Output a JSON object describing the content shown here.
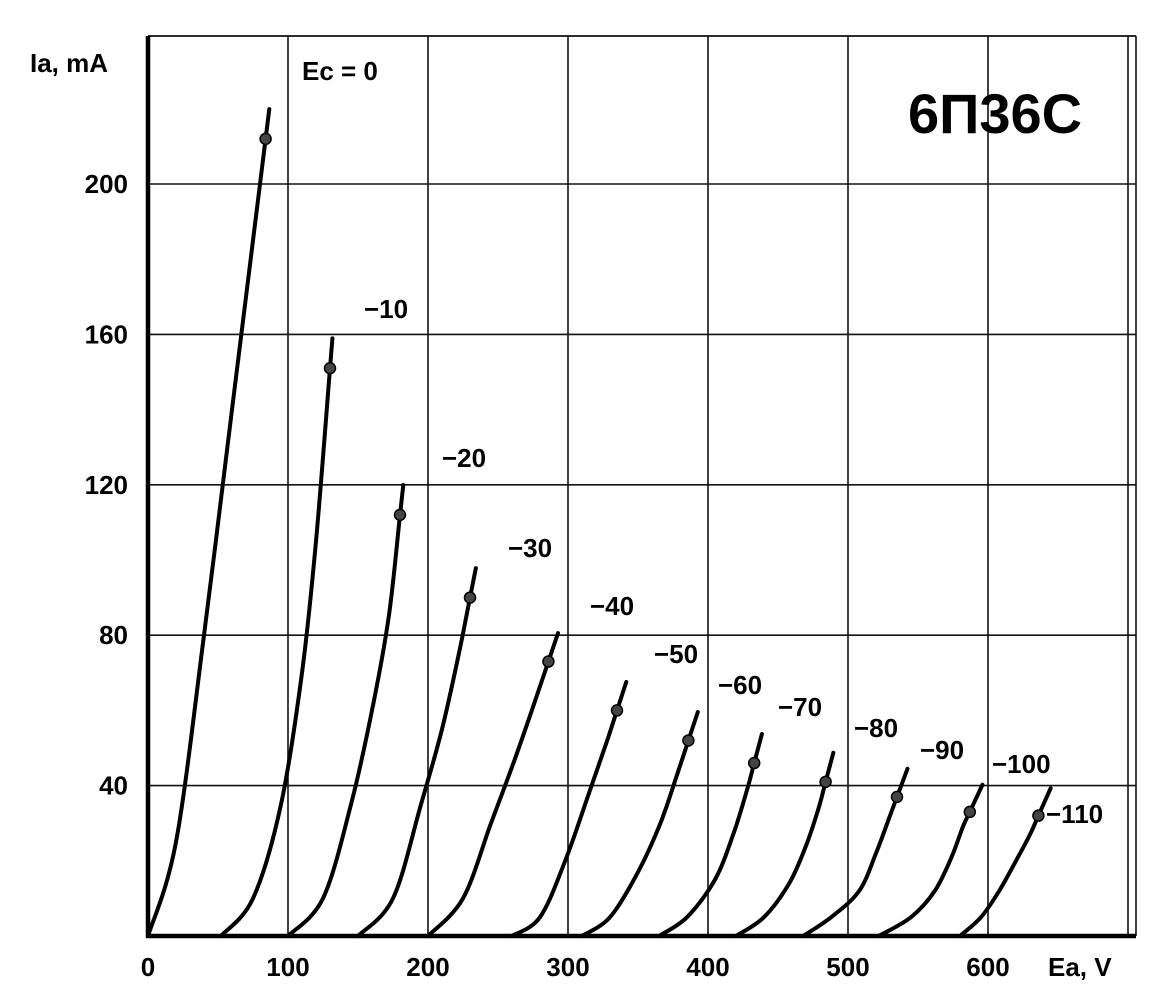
{
  "chart_data": {
    "type": "line",
    "title": "6П36С",
    "xlabel": "Ea, V",
    "ylabel": "Ia, mA",
    "xlim": [
      0,
      700
    ],
    "ylim": [
      0,
      240
    ],
    "x_ticks": [
      "0",
      "100",
      "200",
      "300",
      "400",
      "500",
      "600"
    ],
    "y_ticks": [
      "40",
      "80",
      "120",
      "160",
      "200"
    ],
    "grid": true,
    "series": [
      {
        "name": "Ec = 0",
        "x": [
          0,
          20,
          40,
          60,
          75,
          84
        ],
        "y": [
          0,
          25,
          80,
          140,
          185,
          212
        ],
        "marker": [
          84,
          212
        ]
      },
      {
        "name": "−10",
        "x": [
          52,
          75,
          95,
          110,
          120,
          130
        ],
        "y": [
          0,
          10,
          35,
          70,
          105,
          151
        ],
        "marker": [
          130,
          151
        ]
      },
      {
        "name": "−20",
        "x": [
          100,
          125,
          145,
          160,
          172,
          180
        ],
        "y": [
          0,
          10,
          35,
          60,
          85,
          112
        ],
        "marker": [
          180,
          112
        ]
      },
      {
        "name": "−30",
        "x": [
          150,
          175,
          195,
          210,
          222,
          230
        ],
        "y": [
          0,
          10,
          35,
          55,
          75,
          90
        ],
        "marker": [
          230,
          90
        ]
      },
      {
        "name": "−40",
        "x": [
          200,
          225,
          245,
          262,
          276,
          286
        ],
        "y": [
          0,
          10,
          30,
          47,
          62,
          73
        ],
        "marker": [
          286,
          73
        ]
      },
      {
        "name": "−50",
        "x": [
          260,
          280,
          298,
          315,
          328,
          335
        ],
        "y": [
          0,
          5,
          20,
          38,
          52,
          60
        ],
        "marker": [
          335,
          60
        ]
      },
      {
        "name": "−60",
        "x": [
          310,
          330,
          350,
          366,
          378,
          386
        ],
        "y": [
          0,
          5,
          17,
          30,
          43,
          52
        ],
        "marker": [
          386,
          52
        ]
      },
      {
        "name": "−70",
        "x": [
          365,
          385,
          405,
          418,
          428,
          433
        ],
        "y": [
          0,
          5,
          15,
          27,
          39,
          46
        ],
        "marker": [
          433,
          46
        ]
      },
      {
        "name": "−80",
        "x": [
          420,
          440,
          458,
          470,
          479,
          484
        ],
        "y": [
          0,
          5,
          14,
          24,
          34,
          41
        ],
        "marker": [
          484,
          41
        ]
      },
      {
        "name": "−90",
        "x": [
          468,
          488,
          508,
          520,
          530,
          535
        ],
        "y": [
          0,
          5,
          12,
          22,
          32,
          37
        ],
        "marker": [
          535,
          37
        ]
      },
      {
        "name": "−100",
        "x": [
          522,
          545,
          562,
          574,
          582,
          587
        ],
        "y": [
          0,
          5,
          12,
          21,
          29,
          33
        ],
        "marker": [
          587,
          33
        ]
      },
      {
        "name": "−110",
        "x": [
          580,
          595,
          608,
          620,
          630,
          636
        ],
        "y": [
          0,
          5,
          12,
          20,
          27,
          32
        ],
        "marker": [
          636,
          32
        ]
      }
    ]
  }
}
